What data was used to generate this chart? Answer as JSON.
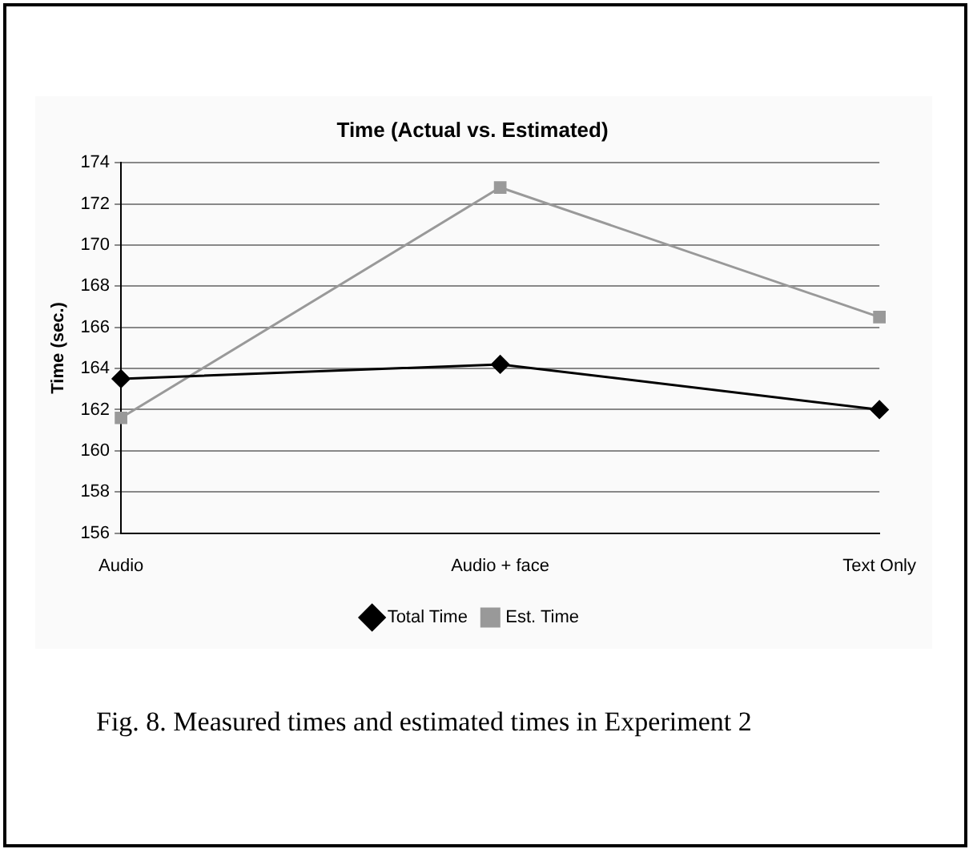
{
  "chart_data": {
    "type": "line",
    "title": "Time (Actual vs. Estimated)",
    "ylabel": "Time (sec.)",
    "categories": [
      "Audio",
      "Audio + face",
      "Text Only"
    ],
    "series": [
      {
        "name": "Total Time",
        "color": "#000000",
        "values": [
          163.5,
          164.2,
          162.0
        ],
        "marker": "diamond"
      },
      {
        "name": "Est. Time",
        "color": "#999999",
        "values": [
          161.6,
          172.8,
          166.5
        ],
        "marker": "square"
      }
    ],
    "ylim": [
      156,
      174
    ],
    "yticks": [
      156,
      158,
      160,
      162,
      164,
      166,
      168,
      170,
      172,
      174
    ],
    "grid": "y",
    "legend": "bottom",
    "line_style": "solid",
    "annotations": [
      "Fig. 8. Measured times and estimated times in Experiment 2"
    ]
  }
}
